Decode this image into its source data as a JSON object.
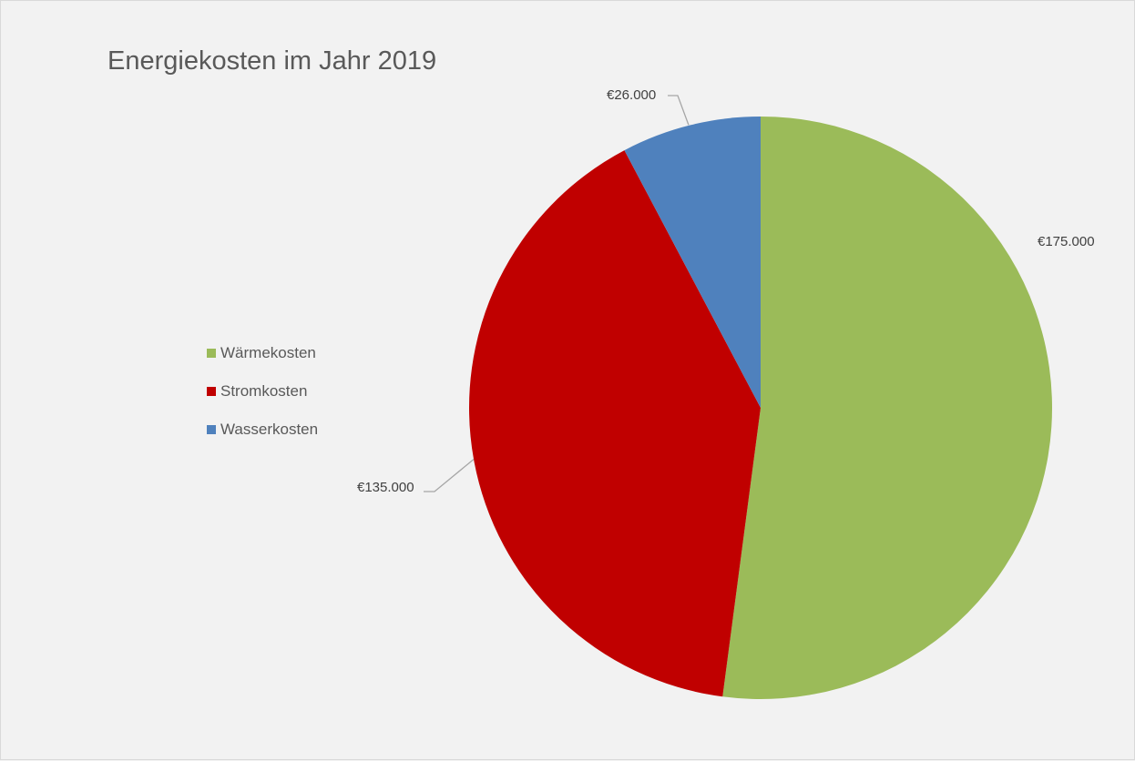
{
  "chart_data": {
    "type": "pie",
    "title": "Energiekosten im Jahr 2019",
    "series": [
      {
        "values": [
          175000,
          135000,
          26000
        ]
      }
    ],
    "categories": [
      "Wärmekosten",
      "Stromkosten",
      "Wasserkosten"
    ],
    "data_labels": [
      "€175.000",
      "€135.000",
      "€26.000"
    ],
    "colors": [
      "#9bbb59",
      "#c00000",
      "#4f81bd"
    ],
    "legend_position": "left",
    "start_angle": "12 o'clock, clockwise"
  }
}
